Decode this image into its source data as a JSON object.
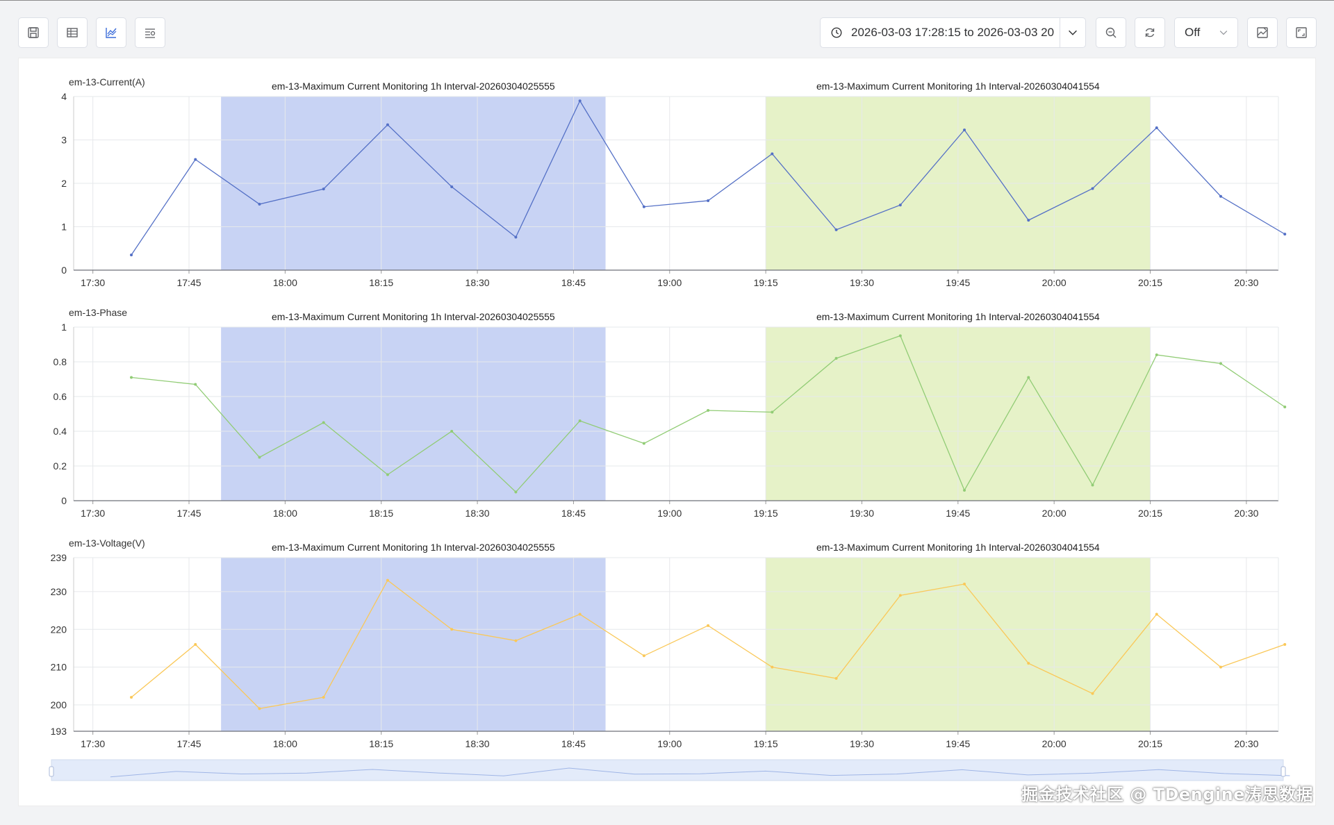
{
  "toolbar": {
    "buttons": [
      {
        "name": "save-icon"
      },
      {
        "name": "table-view-icon"
      },
      {
        "name": "chart-view-icon"
      },
      {
        "name": "query-panel-icon"
      }
    ],
    "time_range": "2026-03-03 17:28:15 to 2026-03-03 20",
    "refresh_value": "Off",
    "right_buttons": [
      {
        "name": "zoom-out-icon"
      },
      {
        "name": "refresh-icon"
      },
      {
        "name": "edit-image-icon"
      },
      {
        "name": "fullscreen-icon"
      }
    ]
  },
  "watermark": "掘金技术社区 @ TDengine涛思数据",
  "colors": {
    "band1": "#c8d3f4",
    "band2": "#e6f2c8",
    "current_line": "#5470c6",
    "phase_line": "#91cc75",
    "voltage_line": "#fac858",
    "grid": "#e6e8eb"
  },
  "chart_data": [
    {
      "type": "line",
      "ylabel": "em-13-Current(A)",
      "ylim": [
        0,
        4
      ],
      "yticks": [
        "0",
        "1",
        "2",
        "3",
        "4"
      ],
      "xticks": [
        "17:30",
        "17:45",
        "18:00",
        "18:15",
        "18:30",
        "18:45",
        "19:00",
        "19:15",
        "19:30",
        "19:45",
        "20:00",
        "20:15",
        "20:30"
      ],
      "x": [
        "17:36",
        "17:46",
        "17:56",
        "18:06",
        "18:16",
        "18:26",
        "18:36",
        "18:46",
        "18:56",
        "19:06",
        "19:16",
        "19:26",
        "19:36",
        "19:46",
        "19:56",
        "20:06",
        "20:16",
        "20:26",
        "20:36"
      ],
      "series": [
        {
          "values": [
            0.35,
            2.55,
            1.52,
            1.87,
            3.35,
            1.92,
            0.76,
            3.9,
            1.46,
            1.6,
            2.68,
            0.93,
            1.5,
            3.23,
            1.15,
            1.88,
            3.28,
            1.7,
            0.83
          ]
        }
      ],
      "annotations": [
        {
          "label": "em-13-Maximum Current Monitoring 1h Interval-20260304025555",
          "start": "17:50",
          "end": "18:50"
        },
        {
          "label": "em-13-Maximum Current Monitoring 1h Interval-20260304041554",
          "start": "19:15",
          "end": "20:15"
        }
      ]
    },
    {
      "type": "line",
      "ylabel": "em-13-Phase",
      "ylim": [
        0,
        1
      ],
      "yticks": [
        "0",
        "0.2",
        "0.4",
        "0.6",
        "0.8",
        "1"
      ],
      "xticks": [
        "17:30",
        "17:45",
        "18:00",
        "18:15",
        "18:30",
        "18:45",
        "19:00",
        "19:15",
        "19:30",
        "19:45",
        "20:00",
        "20:15",
        "20:30"
      ],
      "x": [
        "17:36",
        "17:46",
        "17:56",
        "18:06",
        "18:16",
        "18:26",
        "18:36",
        "18:46",
        "18:56",
        "19:06",
        "19:16",
        "19:26",
        "19:36",
        "19:46",
        "19:56",
        "20:06",
        "20:16",
        "20:26",
        "20:36"
      ],
      "series": [
        {
          "values": [
            0.71,
            0.67,
            0.25,
            0.45,
            0.15,
            0.4,
            0.05,
            0.46,
            0.33,
            0.52,
            0.51,
            0.82,
            0.95,
            0.06,
            0.71,
            0.09,
            0.84,
            0.79,
            0.54
          ]
        }
      ],
      "annotations": [
        {
          "label": "em-13-Maximum Current Monitoring 1h Interval-20260304025555",
          "start": "17:50",
          "end": "18:50"
        },
        {
          "label": "em-13-Maximum Current Monitoring 1h Interval-20260304041554",
          "start": "19:15",
          "end": "20:15"
        }
      ]
    },
    {
      "type": "line",
      "ylabel": "em-13-Voltage(V)",
      "ylim": [
        193,
        239
      ],
      "yticks": [
        "193",
        "200",
        "210",
        "220",
        "230",
        "239"
      ],
      "xticks": [
        "17:30",
        "17:45",
        "18:00",
        "18:15",
        "18:30",
        "18:45",
        "19:00",
        "19:15",
        "19:30",
        "19:45",
        "20:00",
        "20:15",
        "20:30"
      ],
      "x": [
        "17:36",
        "17:46",
        "17:56",
        "18:06",
        "18:16",
        "18:26",
        "18:36",
        "18:46",
        "18:56",
        "19:06",
        "19:16",
        "19:26",
        "19:36",
        "19:46",
        "19:56",
        "20:06",
        "20:16",
        "20:26",
        "20:36"
      ],
      "series": [
        {
          "values": [
            202,
            216,
            199,
            202,
            233,
            220,
            217,
            224,
            213,
            221,
            210,
            207,
            229,
            232,
            211,
            203,
            224,
            210,
            216
          ]
        }
      ],
      "annotations": [
        {
          "label": "em-13-Maximum Current Monitoring 1h Interval-20260304025555",
          "start": "17:50",
          "end": "18:50"
        },
        {
          "label": "em-13-Maximum Current Monitoring 1h Interval-20260304041554",
          "start": "19:15",
          "end": "20:15"
        }
      ]
    }
  ],
  "overview": {
    "x": [
      "17:36",
      "17:46",
      "17:56",
      "18:06",
      "18:16",
      "18:26",
      "18:36",
      "18:46",
      "18:56",
      "19:06",
      "19:16",
      "19:26",
      "19:36",
      "19:46",
      "19:56",
      "20:06",
      "20:16",
      "20:26",
      "20:36"
    ],
    "values": [
      0.35,
      2.55,
      1.52,
      1.87,
      3.35,
      1.92,
      0.76,
      3.9,
      1.46,
      1.6,
      2.68,
      0.93,
      1.5,
      3.23,
      1.15,
      1.88,
      3.28,
      1.7,
      0.83
    ]
  }
}
